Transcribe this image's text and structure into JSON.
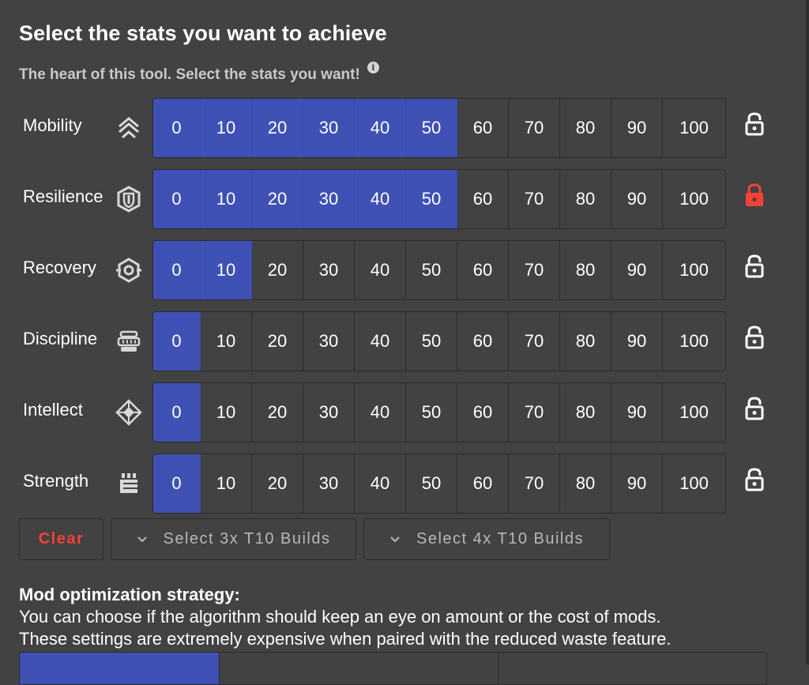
{
  "header": {
    "title": "Select the stats you want to achieve",
    "subtitle": "The heart of this tool. Select the stats you want!"
  },
  "icon_names": {
    "info": "info-circle-icon",
    "lock_unlocked": "lock-open-icon",
    "lock_locked": "lock-closed-icon",
    "chevron": "chevron-down-icon"
  },
  "colors": {
    "active": "#3f51b5",
    "locked": "#f44336",
    "background": "#424242"
  },
  "stat_values": [
    "0",
    "10",
    "20",
    "30",
    "40",
    "50",
    "60",
    "70",
    "80",
    "90",
    "100"
  ],
  "stats": [
    {
      "key": "mobility",
      "label": "Mobility",
      "icon": "mobility-icon",
      "selected": 50,
      "locked": false
    },
    {
      "key": "resilience",
      "label": "Resilience",
      "icon": "resilience-icon",
      "selected": 50,
      "locked": true
    },
    {
      "key": "recovery",
      "label": "Recovery",
      "icon": "recovery-icon",
      "selected": 10,
      "locked": false
    },
    {
      "key": "discipline",
      "label": "Discipline",
      "icon": "discipline-icon",
      "selected": 0,
      "locked": false
    },
    {
      "key": "intellect",
      "label": "Intellect",
      "icon": "intellect-icon",
      "selected": 0,
      "locked": false
    },
    {
      "key": "strength",
      "label": "Strength",
      "icon": "strength-icon",
      "selected": 0,
      "locked": false
    }
  ],
  "actions": {
    "clear_label": "Clear",
    "select_3x_label": "Select 3x T10 Builds",
    "select_4x_label": "Select 4x T10 Builds"
  },
  "mod_optimization": {
    "heading": "Mod optimization strategy:",
    "description_line1": "You can choose if the algorithm should keep an eye on amount or the cost of mods.",
    "description_line2": "These settings are extremely expensive when paired with the reduced waste feature."
  }
}
